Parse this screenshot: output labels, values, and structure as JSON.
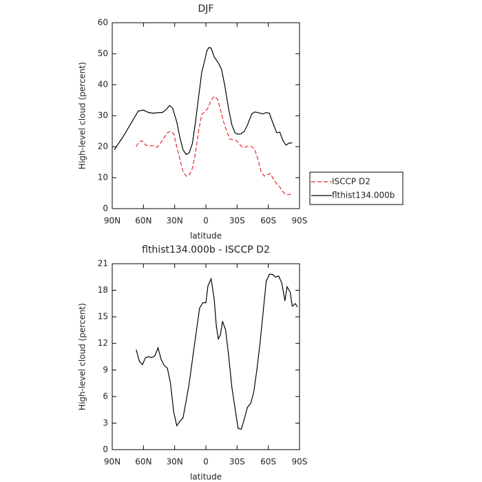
{
  "chart_data": [
    {
      "type": "line",
      "title": "DJF",
      "xlabel": "latitude",
      "ylabel": "High-level cloud (percent)",
      "xlim": [
        90,
        -90
      ],
      "xticks": [
        {
          "value": 90,
          "label": "90N"
        },
        {
          "value": 60,
          "label": "60N"
        },
        {
          "value": 30,
          "label": "30N"
        },
        0,
        {
          "value": -30,
          "label": "30S"
        },
        {
          "value": -60,
          "label": "60S"
        },
        {
          "value": -90,
          "label": "90S"
        }
      ],
      "ylim": [
        0,
        60
      ],
      "yticks": [
        0,
        10,
        20,
        30,
        40,
        50,
        60
      ],
      "legend": "outside-right",
      "series": [
        {
          "name": "ISCCP D2",
          "color": "#e8262b",
          "style": "dashed",
          "x": [
            67,
            64,
            61,
            58,
            54,
            50,
            47,
            44,
            40,
            37,
            34,
            31,
            28,
            25,
            22,
            19,
            16,
            13,
            10,
            7,
            4,
            1,
            -2,
            -5,
            -8,
            -11,
            -14,
            -17,
            -20,
            -23,
            -26,
            -29,
            -32,
            -35,
            -38,
            -41,
            -44,
            -47,
            -50,
            -53,
            -56,
            -59,
            -62,
            -65,
            -68,
            -71,
            -74,
            -77,
            -80,
            -83
          ],
          "values": [
            20,
            21.7,
            21.8,
            20.5,
            20.3,
            20.3,
            19.8,
            21,
            23,
            24.5,
            25,
            24.2,
            20,
            16,
            12,
            10.5,
            10.8,
            13,
            18,
            25,
            30.5,
            31.2,
            32.5,
            35,
            36.2,
            35.5,
            32,
            28,
            25,
            22.5,
            22.2,
            22,
            21,
            19.8,
            19.8,
            20.3,
            20,
            19,
            16,
            12,
            10.5,
            11,
            11.3,
            9.5,
            8,
            7,
            5.5,
            4.5,
            4.5,
            5
          ]
        },
        {
          "name": "flthist134.000b",
          "color": "#000000",
          "style": "solid",
          "x": [
            88,
            80,
            72,
            65,
            60,
            55,
            50,
            45,
            42,
            38,
            35,
            32,
            28,
            25,
            22,
            19,
            16,
            13,
            10,
            7,
            4,
            1,
            -1,
            -3,
            -5,
            -8,
            -12,
            -15,
            -18,
            -22,
            -25,
            -28,
            -31,
            -34,
            -37,
            -40,
            -44,
            -47,
            -51,
            -55,
            -58,
            -61,
            -64,
            -68,
            -71,
            -74,
            -77,
            -80,
            -83
          ],
          "values": [
            19,
            23,
            27.5,
            31.5,
            31.8,
            31,
            30.8,
            31,
            31,
            32,
            33.3,
            32.5,
            28,
            23,
            19,
            17.5,
            18,
            21,
            28,
            36,
            44,
            48,
            51,
            52,
            51.8,
            49,
            47,
            45,
            40,
            32,
            27,
            24.5,
            24,
            24.2,
            25,
            27,
            30.5,
            31.2,
            30.9,
            30.6,
            31,
            30.8,
            28,
            24.5,
            24.7,
            22,
            20.5,
            21.2,
            21.2
          ]
        }
      ]
    },
    {
      "type": "line",
      "title": "flthist134.000b - ISCCP D2",
      "xlabel": "latitude",
      "ylabel": "High-level cloud (percent)",
      "xlim": [
        90,
        -90
      ],
      "xticks": [
        {
          "value": 90,
          "label": "90N"
        },
        {
          "value": 60,
          "label": "60N"
        },
        {
          "value": 30,
          "label": "30N"
        },
        0,
        {
          "value": -30,
          "label": "30S"
        },
        {
          "value": -60,
          "label": "60S"
        },
        {
          "value": -90,
          "label": "90S"
        }
      ],
      "ylim": [
        0,
        21
      ],
      "yticks": [
        0,
        3,
        6,
        9,
        12,
        15,
        18,
        21
      ],
      "series": [
        {
          "color": "#000000",
          "style": "solid",
          "x": [
            67,
            64,
            61,
            58,
            55,
            52,
            49,
            46,
            43,
            40,
            37,
            34,
            31,
            28,
            25,
            22,
            19,
            16,
            12,
            9,
            6,
            3,
            0,
            -2,
            -5,
            -8,
            -10,
            -12,
            -14,
            -16,
            -19,
            -22,
            -25,
            -28,
            -31,
            -34,
            -37,
            -40,
            -43,
            -46,
            -49,
            -52,
            -55,
            -58,
            -61,
            -64,
            -67,
            -70,
            -73,
            -76,
            -78,
            -81,
            -83,
            -86,
            -88
          ],
          "values": [
            11.3,
            10,
            9.6,
            10.4,
            10.5,
            10.4,
            10.6,
            11.5,
            10.2,
            9.5,
            9.2,
            7.5,
            4.3,
            2.7,
            3.2,
            3.6,
            5.5,
            7.5,
            11,
            13.5,
            16,
            16.6,
            16.6,
            18.5,
            19.3,
            17,
            14,
            12.5,
            13,
            14.5,
            13.5,
            10.5,
            7,
            4.7,
            2.4,
            2.3,
            3.5,
            4.8,
            5.2,
            6.5,
            9,
            12,
            15.5,
            19,
            19.8,
            19.8,
            19.5,
            19.6,
            18.8,
            16.8,
            18.4,
            17.8,
            16.2,
            16.5,
            16.1
          ]
        }
      ]
    }
  ]
}
